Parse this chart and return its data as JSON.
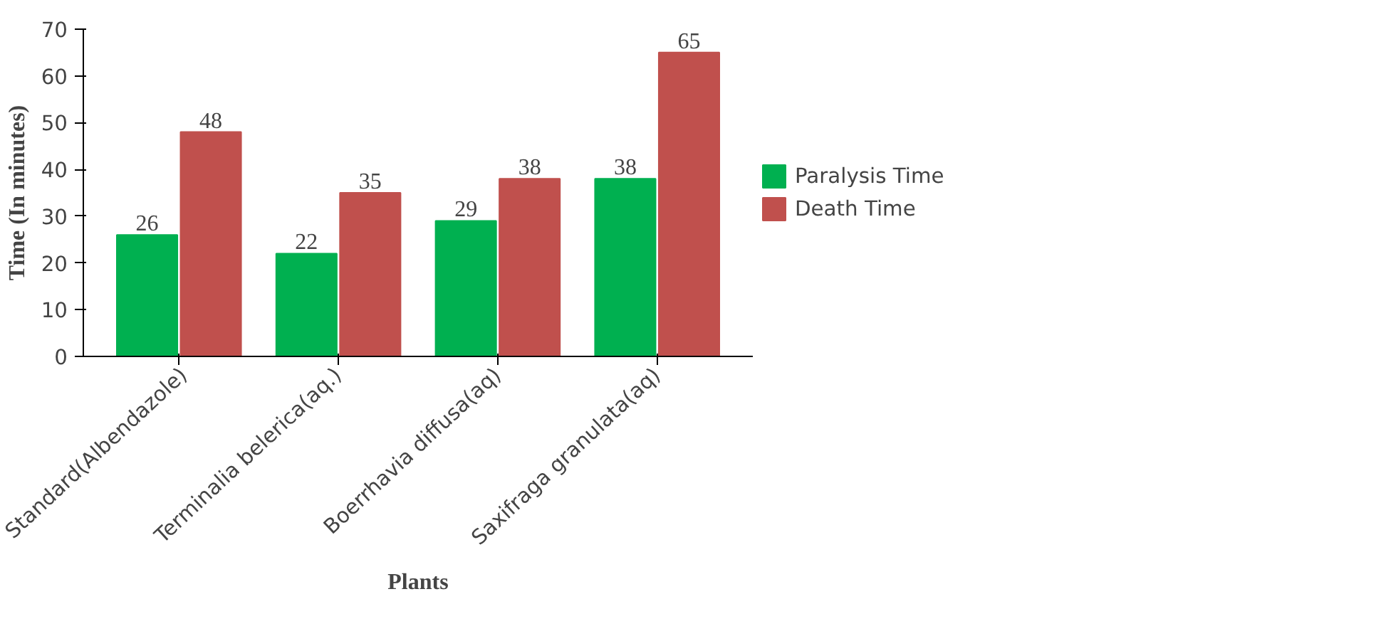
{
  "chart_data": {
    "type": "bar",
    "xlabel": "Plants",
    "ylabel": "Time (In minutes)",
    "categories": [
      "Standard(Albendazole)",
      "Terminalia belerica(aq.)",
      "Boerrhavia diffusa(aq)",
      "Saxifraga granulata(aq)"
    ],
    "series": [
      {
        "name": "Paralysis Time",
        "color": "#00b050",
        "values": [
          26,
          22,
          29,
          38
        ]
      },
      {
        "name": "Death Time",
        "color": "#c0504d",
        "values": [
          48,
          35,
          38,
          65
        ]
      }
    ],
    "ylim": [
      0,
      70
    ],
    "yticks": [
      0,
      10,
      20,
      30,
      40,
      50,
      60,
      70
    ],
    "grid": false,
    "legend": "right",
    "data_labels": true
  }
}
